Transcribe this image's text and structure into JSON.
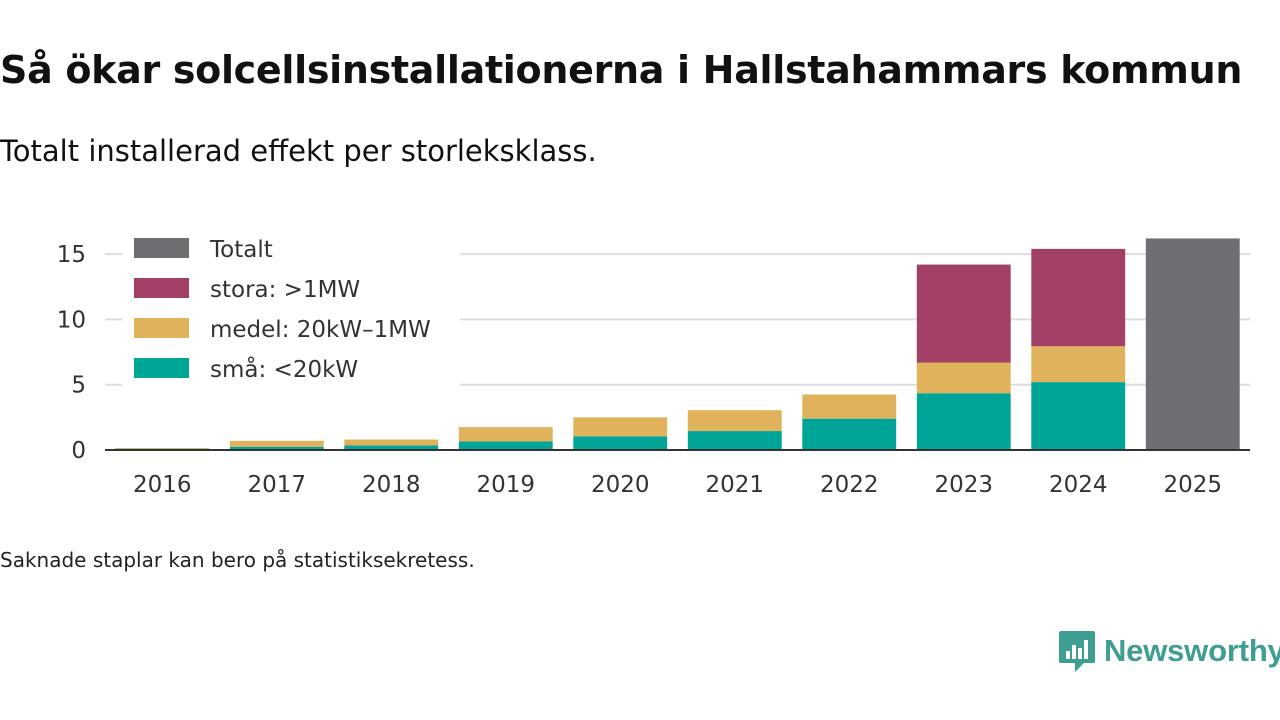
{
  "title": "Så ökar solcellsinstallationerna i Hallstahammars kommun",
  "subtitle": "Totalt installerad effekt per storleksklass.",
  "footnote": "Saknade staplar kan bero på statistiksekretess.",
  "brand": {
    "name": "Newsworthy",
    "logo_icon": "bar-chart-speech-bubble-icon",
    "color": "#3d9e91"
  },
  "chart_data": {
    "type": "bar",
    "stacked": true,
    "categories": [
      "2016",
      "2017",
      "2018",
      "2019",
      "2020",
      "2021",
      "2022",
      "2023",
      "2024",
      "2025"
    ],
    "series": [
      {
        "name": "små: <20kW",
        "color": "#00a597",
        "values": [
          0.1,
          0.25,
          0.35,
          0.65,
          1.05,
          1.45,
          2.4,
          4.35,
          5.2,
          null
        ]
      },
      {
        "name": "medel: 20kW–1MW",
        "color": "#e0b25c",
        "values": [
          0.05,
          0.45,
          0.45,
          1.1,
          1.45,
          1.6,
          1.85,
          2.35,
          2.75,
          null
        ]
      },
      {
        "name": "stora: >1MW",
        "color": "#a34067",
        "values": [
          null,
          null,
          null,
          null,
          null,
          null,
          null,
          7.5,
          7.45,
          null
        ]
      },
      {
        "name": "Totalt",
        "color": "#6f6e73",
        "values": [
          null,
          null,
          null,
          null,
          null,
          null,
          null,
          null,
          null,
          16.2
        ]
      }
    ],
    "legend_order": [
      "Totalt",
      "stora: >1MW",
      "medel: 20kW–1MW",
      "små: <20kW"
    ],
    "legend_position": "top-left",
    "yticks": [
      0,
      5,
      10,
      15
    ],
    "ylim": [
      0,
      17
    ],
    "xlabel": "",
    "ylabel": "",
    "grid": true
  }
}
